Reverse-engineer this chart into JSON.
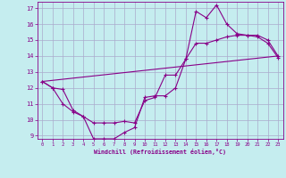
{
  "xlabel": "Windchill (Refroidissement éolien,°C)",
  "xlim": [
    -0.5,
    23.5
  ],
  "ylim": [
    8.8,
    17.4
  ],
  "yticks": [
    9,
    10,
    11,
    12,
    13,
    14,
    15,
    16,
    17
  ],
  "xticks": [
    0,
    1,
    2,
    3,
    4,
    5,
    6,
    7,
    8,
    9,
    10,
    11,
    12,
    13,
    14,
    15,
    16,
    17,
    18,
    19,
    20,
    21,
    22,
    23
  ],
  "bg_color": "#c5edef",
  "line_color": "#880088",
  "grid_color": "#aaaacc",
  "curve1_x": [
    0,
    1,
    2,
    3,
    4,
    5,
    6,
    7,
    8,
    9,
    10,
    11,
    12,
    13,
    14,
    15,
    16,
    17,
    18,
    19,
    20,
    21,
    22,
    23
  ],
  "curve1_y": [
    12.4,
    12.0,
    11.9,
    10.6,
    10.2,
    9.8,
    9.8,
    9.8,
    9.9,
    9.8,
    11.2,
    11.4,
    12.8,
    12.8,
    13.8,
    16.8,
    16.4,
    17.2,
    16.0,
    15.4,
    15.3,
    15.2,
    14.8,
    13.9
  ],
  "curve2_x": [
    0,
    1,
    2,
    3,
    4,
    5,
    6,
    7,
    8,
    9,
    10,
    11,
    12,
    13,
    14,
    15,
    16,
    17,
    18,
    19,
    20,
    21,
    22,
    23
  ],
  "curve2_y": [
    12.4,
    12.0,
    11.0,
    10.5,
    10.2,
    8.8,
    8.8,
    8.8,
    9.2,
    9.5,
    11.4,
    11.5,
    11.5,
    12.0,
    13.8,
    14.8,
    14.8,
    15.0,
    15.2,
    15.3,
    15.3,
    15.3,
    15.0,
    14.0
  ],
  "curve3_x": [
    0,
    23
  ],
  "curve3_y": [
    12.4,
    14.0
  ]
}
